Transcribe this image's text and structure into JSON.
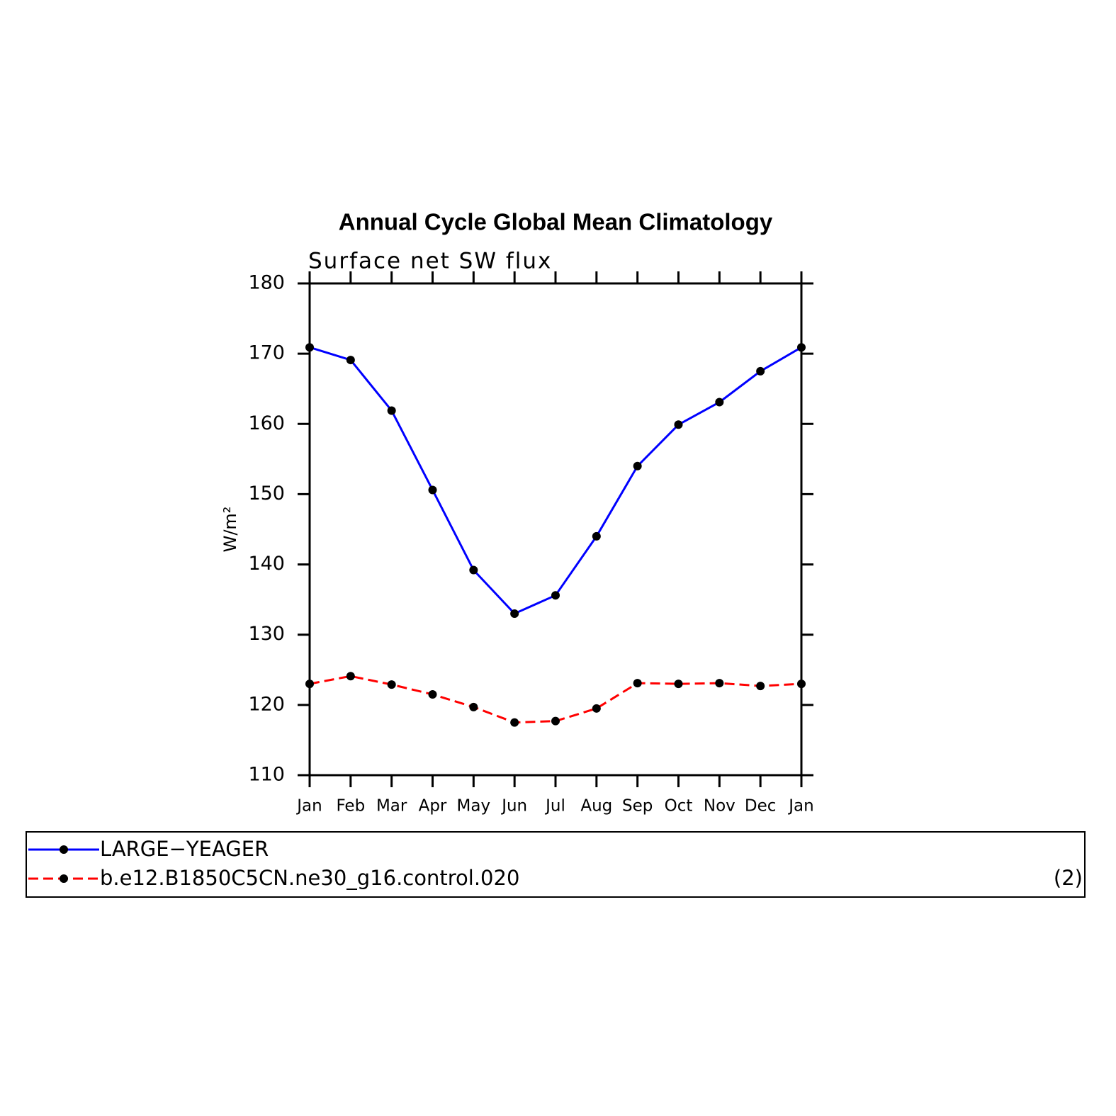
{
  "chart_data": {
    "type": "line",
    "title": "Annual Cycle Global Mean Climatology",
    "subtitle": "Surface net SW flux",
    "y_label": "W/m²",
    "panel_label": "(2)",
    "categories": [
      "Jan",
      "Feb",
      "Mar",
      "Apr",
      "May",
      "Jun",
      "Jul",
      "Aug",
      "Sep",
      "Oct",
      "Nov",
      "Dec",
      "Jan"
    ],
    "series": [
      {
        "name": "LARGE−YEAGER",
        "color": "#0000ff",
        "line_style": "solid",
        "values": [
          170.9,
          169.1,
          161.9,
          150.6,
          139.2,
          133.0,
          135.6,
          144.0,
          154.0,
          159.9,
          163.1,
          167.5,
          170.9
        ]
      },
      {
        "name": "b.e12.B1850C5CN.ne30_g16.control.020",
        "color": "#ff0000",
        "line_style": "dashed",
        "values": [
          123.0,
          124.1,
          122.9,
          121.5,
          119.7,
          117.5,
          117.7,
          119.5,
          123.1,
          123.0,
          123.1,
          122.7,
          123.0
        ]
      }
    ],
    "ylim": [
      110,
      180
    ],
    "yticks": [
      110,
      120,
      130,
      140,
      150,
      160,
      170,
      180
    ]
  }
}
